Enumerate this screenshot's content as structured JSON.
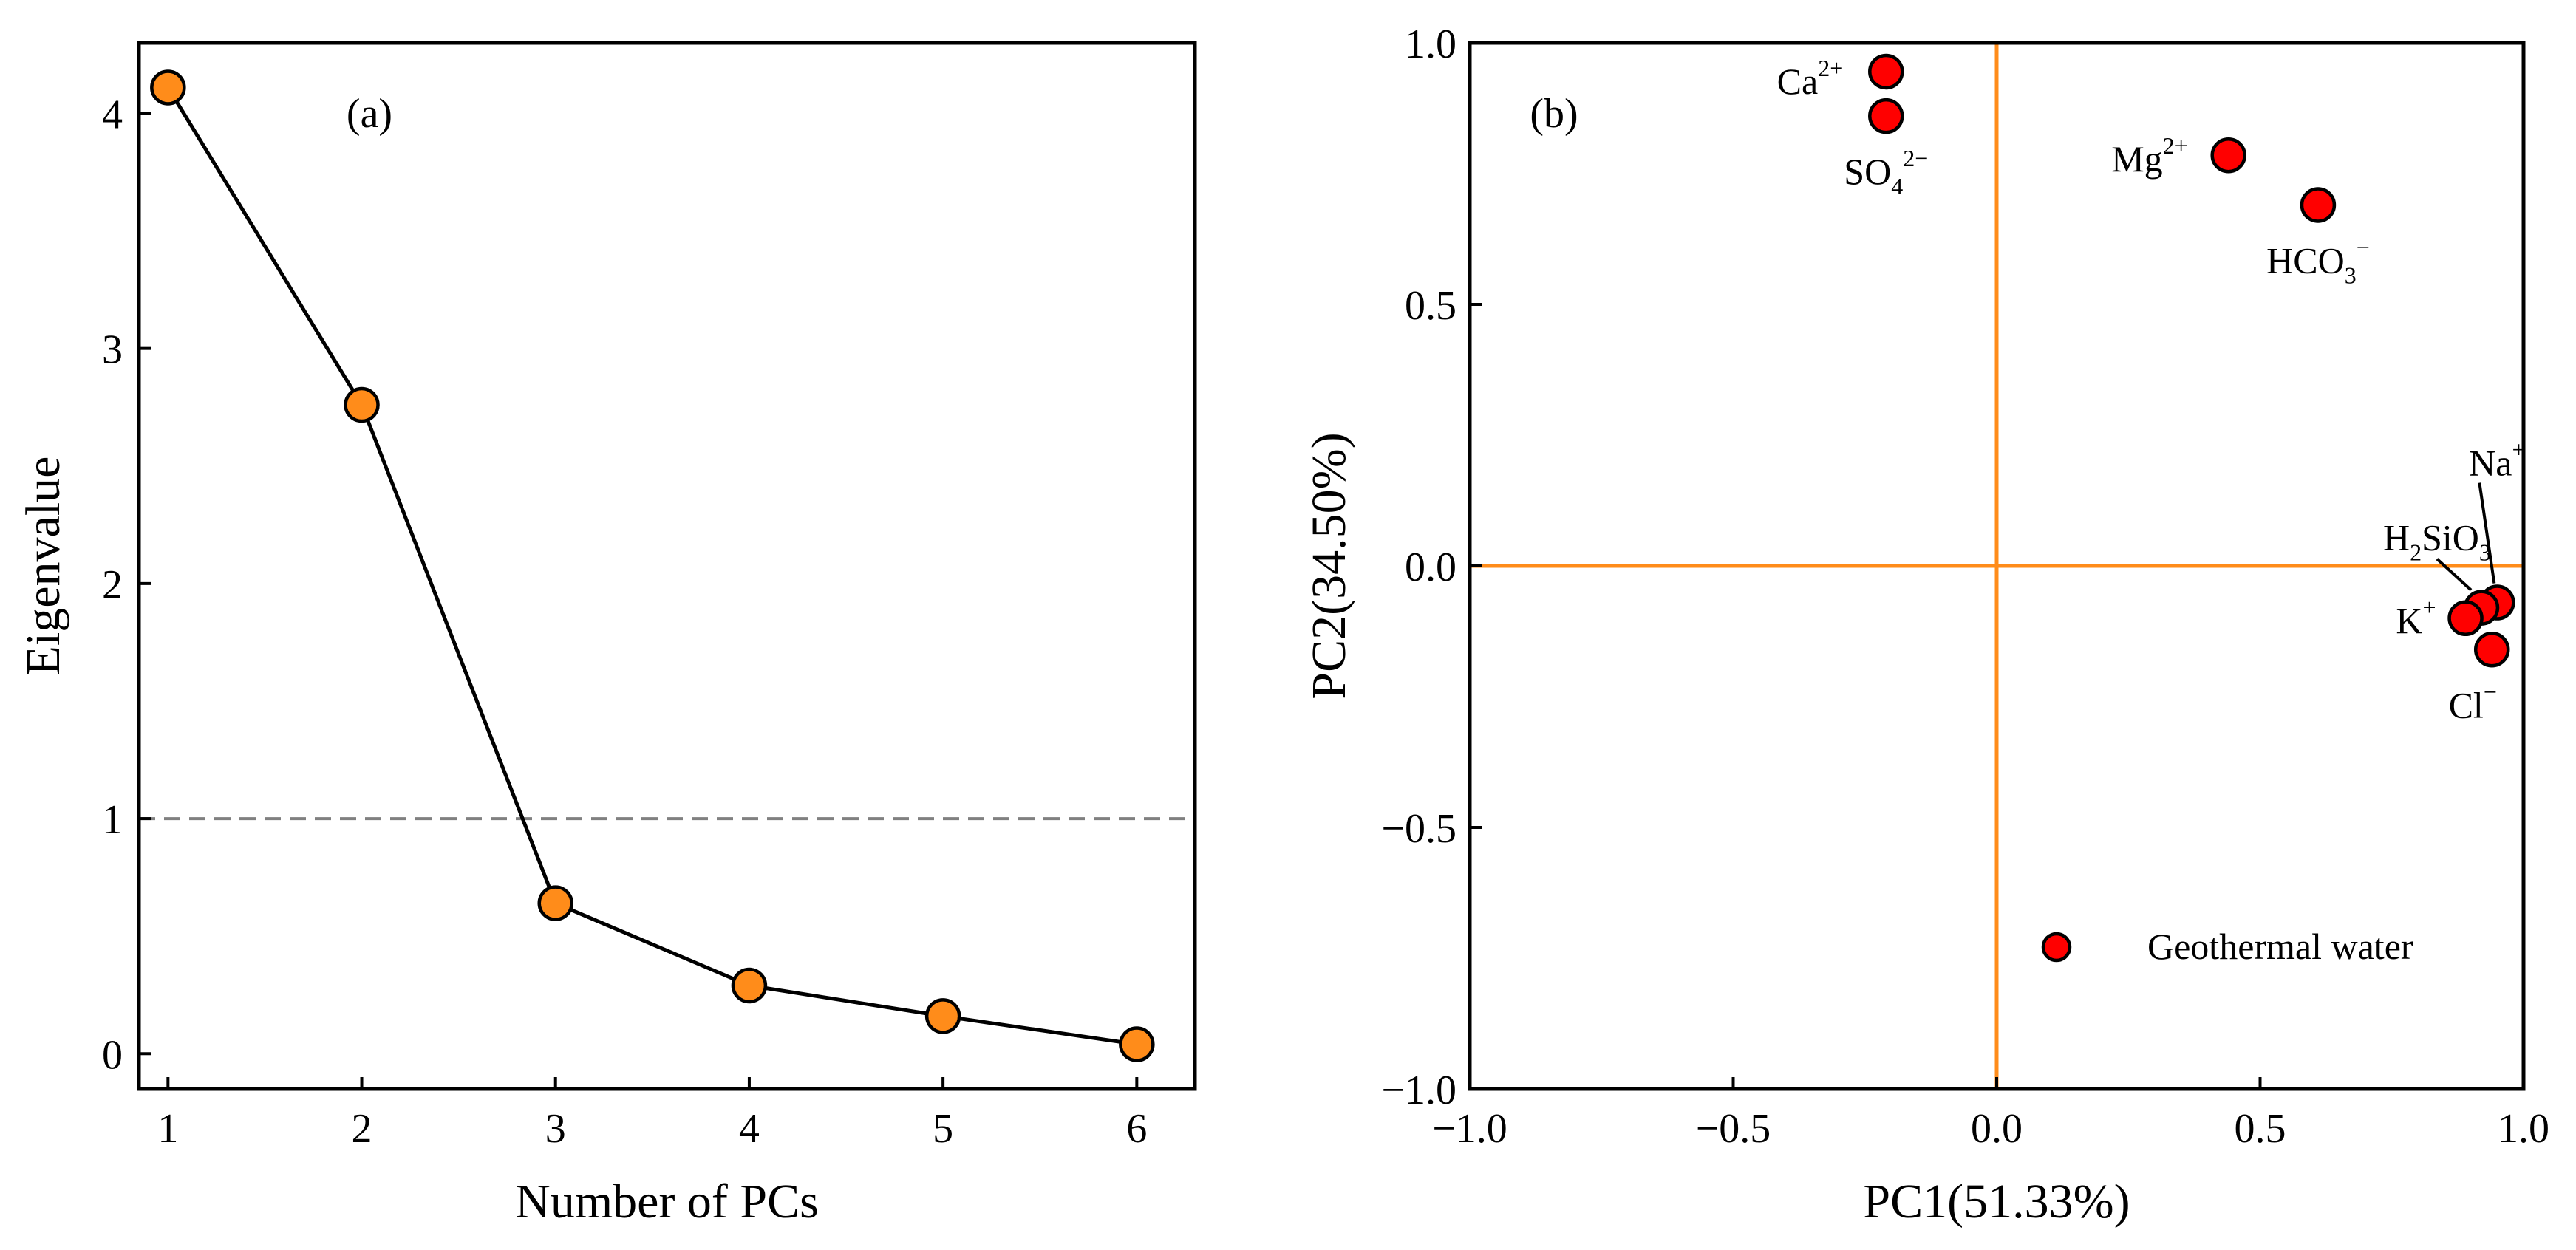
{
  "chart_data": [
    {
      "type": "line",
      "panel": "(a)",
      "xlabel": "Number of PCs",
      "ylabel": "Eigenvalue",
      "x": [
        1,
        2,
        3,
        4,
        5,
        6
      ],
      "values": [
        4.11,
        2.76,
        0.64,
        0.29,
        0.16,
        0.04
      ],
      "xlim": [
        0.85,
        6.3
      ],
      "ylim": [
        -0.15,
        4.3
      ],
      "xticks": [
        1,
        2,
        3,
        4,
        5,
        6
      ],
      "yticks": [
        0,
        1,
        2,
        3,
        4
      ],
      "reference_line": {
        "y": 1,
        "style": "dashed",
        "color": "#808080"
      },
      "colors": {
        "marker_fill": "#FF8C1A",
        "line": "#000000",
        "edge": "#000000"
      }
    },
    {
      "type": "scatter",
      "panel": "(b)",
      "xlabel": "PC1(51.33%)",
      "ylabel": "PC2(34.50%)",
      "xlim": [
        -1.0,
        1.0
      ],
      "ylim": [
        -1.0,
        1.0
      ],
      "xticks": [
        -1.0,
        -0.5,
        0.0,
        0.5,
        1.0
      ],
      "yticks": [
        -1.0,
        -0.5,
        0.0,
        0.5,
        1.0
      ],
      "xtick_labels": [
        "−1.0",
        "−0.5",
        "0.0",
        "0.5",
        "1.0"
      ],
      "ytick_labels": [
        "−1.0",
        "−0.5",
        "0.0",
        "0.5",
        "1.0"
      ],
      "reference_lines": {
        "x": 0,
        "y": 0,
        "color": "#FF8C1A"
      },
      "series": [
        {
          "name": "Geothermal water",
          "points": [
            {
              "label": "Ca2+",
              "base": "Ca",
              "sub": "",
              "sup": "2+",
              "x": -0.21,
              "y": 0.945
            },
            {
              "label": "SO4 2-",
              "base": "SO",
              "sub": "4",
              "sup": "2−",
              "x": -0.21,
              "y": 0.86
            },
            {
              "label": "Mg2+",
              "base": "Mg",
              "sub": "",
              "sup": "2+",
              "x": 0.44,
              "y": 0.785
            },
            {
              "label": "HCO3-",
              "base": "HCO",
              "sub": "3",
              "sup": "−",
              "x": 0.61,
              "y": 0.69
            },
            {
              "label": "Na+",
              "base": "Na",
              "sub": "",
              "sup": "+",
              "x": 0.95,
              "y": -0.07
            },
            {
              "label": "H2SiO3",
              "base": "H",
              "sub": "2",
              "base2": "SiO",
              "sub2": "3",
              "sup": "",
              "x": 0.92,
              "y": -0.08
            },
            {
              "label": "K+",
              "base": "K",
              "sub": "",
              "sup": "+",
              "x": 0.89,
              "y": -0.1
            },
            {
              "label": "Cl-",
              "base": "Cl",
              "sub": "",
              "sup": "−",
              "x": 0.94,
              "y": -0.16
            }
          ]
        }
      ],
      "legend": {
        "entries": [
          "Geothermal water"
        ],
        "position": "lower-right"
      },
      "colors": {
        "marker_fill": "#FF0000",
        "edge": "#000000",
        "zero_lines": "#FF8C1A"
      }
    }
  ]
}
